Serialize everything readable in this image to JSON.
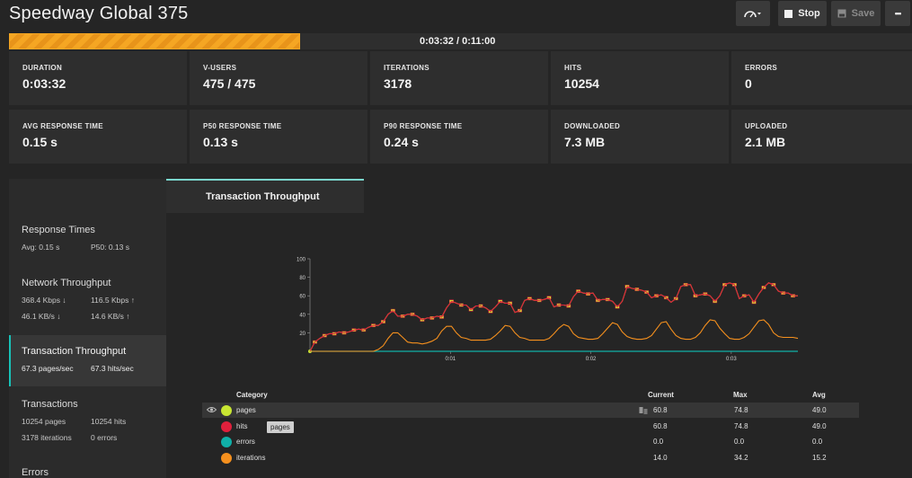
{
  "header": {
    "title": "Speedway Global 375",
    "stop_label": "Stop",
    "save_label": "Save",
    "more_label": "•••"
  },
  "progress": {
    "text": "0:03:32 / 0:11:00",
    "fraction": 0.322
  },
  "stats": [
    {
      "label": "DURATION",
      "value": "0:03:32"
    },
    {
      "label": "V-USERS",
      "value": "475 / 475"
    },
    {
      "label": "ITERATIONS",
      "value": "3178"
    },
    {
      "label": "HITS",
      "value": "10254"
    },
    {
      "label": "ERRORS",
      "value": "0"
    },
    {
      "label": "AVG RESPONSE TIME",
      "value": "0.15 s"
    },
    {
      "label": "P50 RESPONSE TIME",
      "value": "0.13 s"
    },
    {
      "label": "P90 RESPONSE TIME",
      "value": "0.24 s"
    },
    {
      "label": "DOWNLOADED",
      "value": "7.3 MB"
    },
    {
      "label": "UPLOADED",
      "value": "2.1 MB"
    }
  ],
  "sidebar": {
    "response_times": {
      "title": "Response Times",
      "avg": "Avg: 0.15 s",
      "p50": "P50: 0.13 s"
    },
    "network": {
      "title": "Network Throughput",
      "a": "368.4 Kbps ↓",
      "b": "116.5 Kbps ↑",
      "c": "46.1 KB/s ↓",
      "d": "14.6 KB/s ↑"
    },
    "transaction": {
      "title": "Transaction Throughput",
      "a": "67.3 pages/sec",
      "b": "67.3 hits/sec"
    },
    "transactions": {
      "title": "Transactions",
      "a": "10254 pages",
      "b": "10254 hits",
      "c": "3178 iterations",
      "d": "0 errors"
    },
    "errors": {
      "title": "Errors"
    }
  },
  "tab": {
    "label": "Transaction Throughput"
  },
  "legend": {
    "headers": {
      "category": "Category",
      "current": "Current",
      "max": "Max",
      "avg": "Avg"
    },
    "rows": [
      {
        "name": "pages",
        "color": "#c8e632",
        "current": "60.8",
        "max": "74.8",
        "avg": "49.0"
      },
      {
        "name": "hits",
        "color": "#e0203c",
        "current": "60.8",
        "max": "74.8",
        "avg": "49.0"
      },
      {
        "name": "errors",
        "color": "#10b0a8",
        "current": "0.0",
        "max": "0.0",
        "avg": "0.0"
      },
      {
        "name": "iterations",
        "color": "#f5901e",
        "current": "14.0",
        "max": "34.2",
        "avg": "15.2"
      }
    ],
    "tooltip": "pages"
  },
  "chart_data": {
    "type": "line",
    "ylim": [
      0,
      100
    ],
    "yticks": [
      "20",
      "40",
      "60",
      "80",
      "100"
    ],
    "xlim": [
      0,
      3.5
    ],
    "xticks": [
      {
        "at": 1,
        "label": "0:01"
      },
      {
        "at": 2,
        "label": "0:02"
      },
      {
        "at": 3,
        "label": "0:03"
      }
    ],
    "series": [
      {
        "name": "pages",
        "color": "#c8e632",
        "values": [
          0,
          10,
          14,
          17,
          19,
          19,
          21,
          20,
          21,
          23,
          24,
          23,
          26,
          28,
          28,
          32,
          40,
          44,
          38,
          38,
          40,
          40,
          38,
          34,
          36,
          36,
          38,
          37,
          47,
          54,
          52,
          50,
          50,
          45,
          49,
          49,
          47,
          43,
          48,
          54,
          52,
          52,
          42,
          44,
          55,
          57,
          55,
          55,
          56,
          58,
          48,
          50,
          50,
          49,
          59,
          65,
          63,
          62,
          63,
          55,
          56,
          56,
          54,
          48,
          54,
          70,
          68,
          67,
          66,
          64,
          58,
          60,
          61,
          58,
          53,
          57,
          70,
          72,
          72,
          60,
          61,
          62,
          60,
          54,
          60,
          72,
          74,
          72,
          57,
          60,
          61,
          53,
          62,
          69,
          74,
          72,
          65,
          63,
          63,
          60,
          60
        ]
      },
      {
        "name": "hits",
        "color": "#e0203c",
        "values": [
          0,
          10,
          14,
          17,
          19,
          19,
          21,
          20,
          21,
          23,
          24,
          23,
          26,
          28,
          28,
          32,
          40,
          44,
          38,
          38,
          40,
          40,
          38,
          34,
          36,
          36,
          38,
          37,
          47,
          54,
          52,
          50,
          50,
          45,
          49,
          49,
          47,
          43,
          48,
          54,
          52,
          52,
          42,
          44,
          55,
          57,
          55,
          55,
          56,
          58,
          48,
          50,
          50,
          49,
          59,
          65,
          63,
          62,
          63,
          55,
          56,
          56,
          54,
          48,
          54,
          70,
          68,
          67,
          66,
          64,
          58,
          60,
          61,
          58,
          53,
          57,
          70,
          72,
          72,
          60,
          61,
          62,
          60,
          54,
          60,
          72,
          74,
          72,
          57,
          60,
          61,
          53,
          62,
          69,
          74,
          72,
          65,
          63,
          63,
          60,
          60
        ]
      },
      {
        "name": "errors",
        "color": "#10b0a8",
        "values": [
          0,
          0,
          0,
          0,
          0,
          0,
          0,
          0,
          0,
          0,
          0,
          0,
          0,
          0,
          0,
          0,
          0,
          0,
          0,
          0,
          0,
          0,
          0,
          0,
          0,
          0,
          0,
          0,
          0,
          0,
          0,
          0,
          0,
          0,
          0,
          0,
          0,
          0,
          0,
          0,
          0,
          0,
          0,
          0,
          0,
          0,
          0,
          0,
          0,
          0,
          0,
          0,
          0,
          0,
          0,
          0,
          0,
          0,
          0,
          0,
          0,
          0,
          0,
          0,
          0,
          0,
          0,
          0,
          0,
          0,
          0,
          0,
          0,
          0,
          0,
          0,
          0,
          0,
          0,
          0,
          0,
          0,
          0,
          0,
          0,
          0,
          0,
          0,
          0,
          0,
          0,
          0,
          0,
          0,
          0,
          0,
          0,
          0,
          0,
          0,
          0
        ]
      },
      {
        "name": "iterations",
        "color": "#f5901e",
        "values": [
          0,
          0,
          0,
          0,
          0,
          0,
          0,
          0,
          0,
          0,
          0,
          0,
          0,
          0,
          2,
          6,
          14,
          20,
          20,
          15,
          10,
          9,
          9,
          8,
          9,
          11,
          14,
          22,
          27,
          27,
          20,
          15,
          14,
          12,
          12,
          12,
          12,
          13,
          17,
          22,
          28,
          27,
          20,
          15,
          14,
          12,
          12,
          12,
          12,
          14,
          19,
          25,
          29,
          27,
          19,
          15,
          14,
          13,
          13,
          14,
          19,
          25,
          31,
          29,
          21,
          16,
          14,
          13,
          13,
          14,
          17,
          24,
          31,
          32,
          24,
          17,
          14,
          13,
          13,
          15,
          20,
          28,
          34,
          33,
          25,
          19,
          14,
          13,
          13,
          15,
          19,
          26,
          33,
          34,
          29,
          20,
          16,
          15,
          15,
          15,
          14
        ]
      }
    ]
  }
}
